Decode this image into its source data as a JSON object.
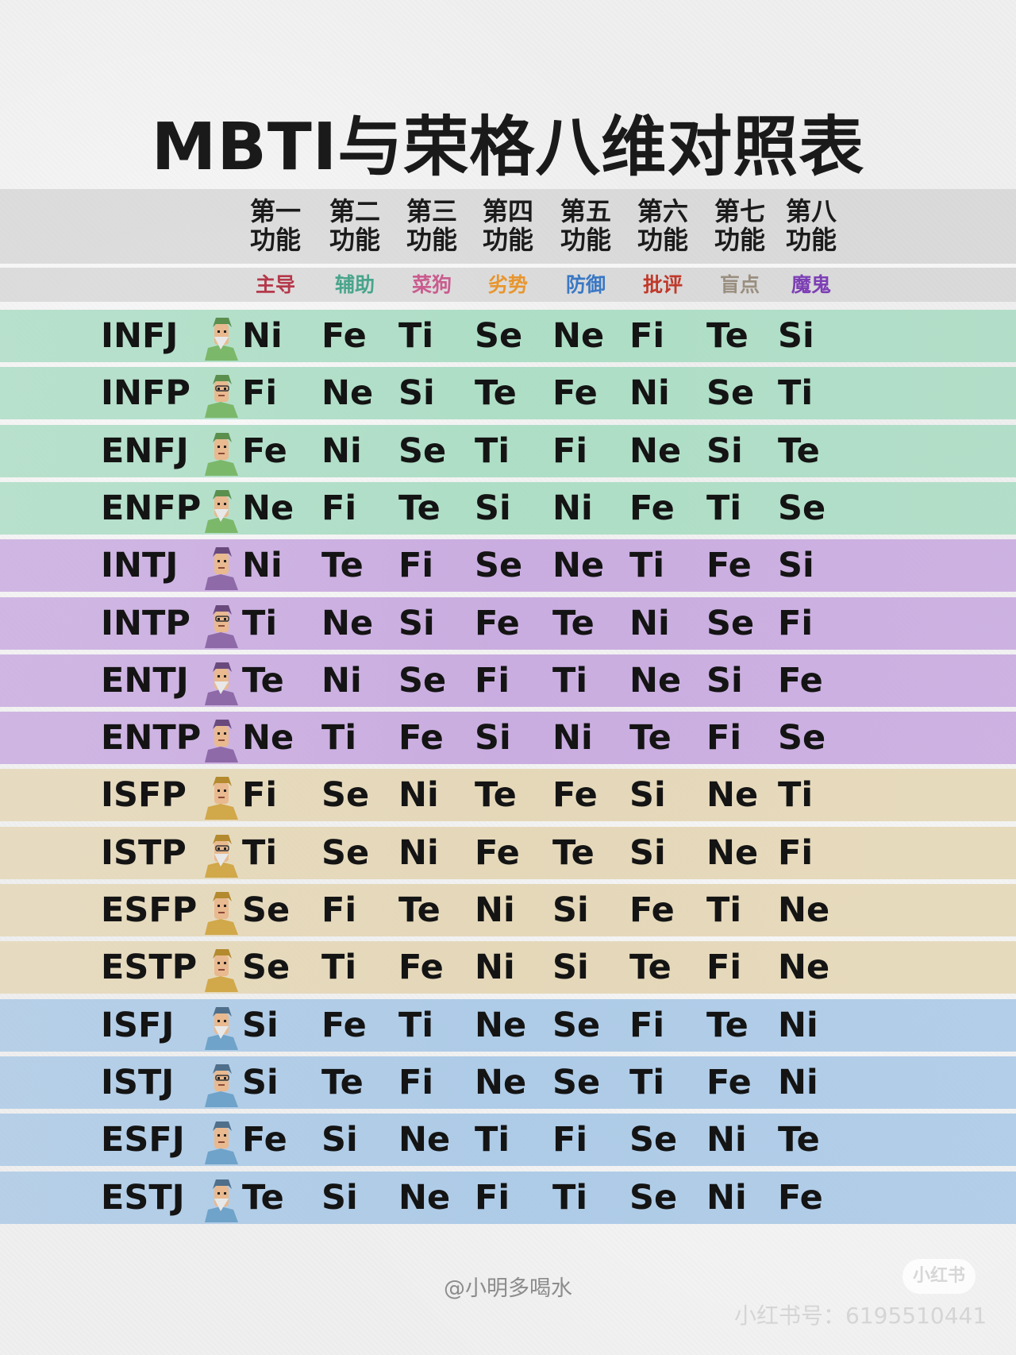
{
  "title": "MBTI与荣格八维对照表",
  "columns": [
    {
      "head1": "第一",
      "head2": "功能",
      "role": "主导",
      "role_color": "#b5384a"
    },
    {
      "head1": "第二",
      "head2": "功能",
      "role": "辅助",
      "role_color": "#48a58b"
    },
    {
      "head1": "第三",
      "head2": "功能",
      "role": "菜狗",
      "role_color": "#c95c8e"
    },
    {
      "head1": "第四",
      "head2": "功能",
      "role": "劣势",
      "role_color": "#e8962e"
    },
    {
      "head1": "第五",
      "head2": "功能",
      "role": "防御",
      "role_color": "#3a78c4"
    },
    {
      "head1": "第六",
      "head2": "功能",
      "role": "批评",
      "role_color": "#c0392b"
    },
    {
      "head1": "第七",
      "head2": "功能",
      "role": "盲点",
      "role_color": "#9a8f80"
    },
    {
      "head1": "第八",
      "head2": "功能",
      "role": "魔鬼",
      "role_color": "#7d3fb5"
    }
  ],
  "groups": {
    "NF": "#a9dcc3",
    "NT": "#c7a8df",
    "SP": "#e4d6b5",
    "SJ": "#a9c8e6"
  },
  "rows": [
    {
      "type": "INFJ",
      "group": "NF",
      "avatar": "sage-avatar-icon",
      "functions": [
        "Ni",
        "Fe",
        "Ti",
        "Se",
        "Ne",
        "Fi",
        "Te",
        "Si"
      ]
    },
    {
      "type": "INFP",
      "group": "NF",
      "avatar": "elf-avatar-icon",
      "functions": [
        "Fi",
        "Ne",
        "Si",
        "Te",
        "Fe",
        "Ni",
        "Se",
        "Ti"
      ]
    },
    {
      "type": "ENFJ",
      "group": "NF",
      "avatar": "teacher-avatar-icon",
      "functions": [
        "Fe",
        "Ni",
        "Se",
        "Ti",
        "Fi",
        "Ne",
        "Si",
        "Te"
      ]
    },
    {
      "type": "ENFP",
      "group": "NF",
      "avatar": "adventurer-avatar-icon",
      "functions": [
        "Ne",
        "Fi",
        "Te",
        "Si",
        "Ni",
        "Fe",
        "Ti",
        "Se"
      ]
    },
    {
      "type": "INTJ",
      "group": "NT",
      "avatar": "architect-avatar-icon",
      "functions": [
        "Ni",
        "Te",
        "Fi",
        "Se",
        "Ne",
        "Ti",
        "Fe",
        "Si"
      ]
    },
    {
      "type": "INTP",
      "group": "NT",
      "avatar": "scientist-avatar-icon",
      "functions": [
        "Ti",
        "Ne",
        "Si",
        "Fe",
        "Te",
        "Ni",
        "Se",
        "Fi"
      ]
    },
    {
      "type": "ENTJ",
      "group": "NT",
      "avatar": "commander-avatar-icon",
      "functions": [
        "Te",
        "Ni",
        "Se",
        "Fi",
        "Ti",
        "Ne",
        "Si",
        "Fe"
      ]
    },
    {
      "type": "ENTP",
      "group": "NT",
      "avatar": "debater-avatar-icon",
      "functions": [
        "Ne",
        "Ti",
        "Fe",
        "Si",
        "Ni",
        "Te",
        "Fi",
        "Se"
      ]
    },
    {
      "type": "ISFP",
      "group": "SP",
      "avatar": "artist-avatar-icon",
      "functions": [
        "Fi",
        "Se",
        "Ni",
        "Te",
        "Fe",
        "Si",
        "Ne",
        "Ti"
      ]
    },
    {
      "type": "ISTP",
      "group": "SP",
      "avatar": "craftsman-avatar-icon",
      "functions": [
        "Ti",
        "Se",
        "Ni",
        "Fe",
        "Te",
        "Si",
        "Ne",
        "Fi"
      ]
    },
    {
      "type": "ESFP",
      "group": "SP",
      "avatar": "performer-avatar-icon",
      "functions": [
        "Se",
        "Fi",
        "Te",
        "Ni",
        "Si",
        "Fe",
        "Ti",
        "Ne"
      ]
    },
    {
      "type": "ESTP",
      "group": "SP",
      "avatar": "entrepreneur-avatar-icon",
      "functions": [
        "Se",
        "Ti",
        "Fe",
        "Ni",
        "Si",
        "Te",
        "Fi",
        "Ne"
      ]
    },
    {
      "type": "ISFJ",
      "group": "SJ",
      "avatar": "nurse-avatar-icon",
      "functions": [
        "Si",
        "Fe",
        "Ti",
        "Ne",
        "Se",
        "Fi",
        "Te",
        "Ni"
      ]
    },
    {
      "type": "ISTJ",
      "group": "SJ",
      "avatar": "inspector-avatar-icon",
      "functions": [
        "Si",
        "Te",
        "Fi",
        "Ne",
        "Se",
        "Ti",
        "Fe",
        "Ni"
      ]
    },
    {
      "type": "ESFJ",
      "group": "SJ",
      "avatar": "consul-avatar-icon",
      "functions": [
        "Fe",
        "Si",
        "Ne",
        "Ti",
        "Fi",
        "Se",
        "Ni",
        "Te"
      ]
    },
    {
      "type": "ESTJ",
      "group": "SJ",
      "avatar": "executive-avatar-icon",
      "functions": [
        "Te",
        "Si",
        "Ne",
        "Fi",
        "Ti",
        "Se",
        "Ni",
        "Fe"
      ]
    }
  ],
  "footer": {
    "credit": "@小明多喝水",
    "logo": "小红书",
    "id": "小红书号：6195510441"
  }
}
